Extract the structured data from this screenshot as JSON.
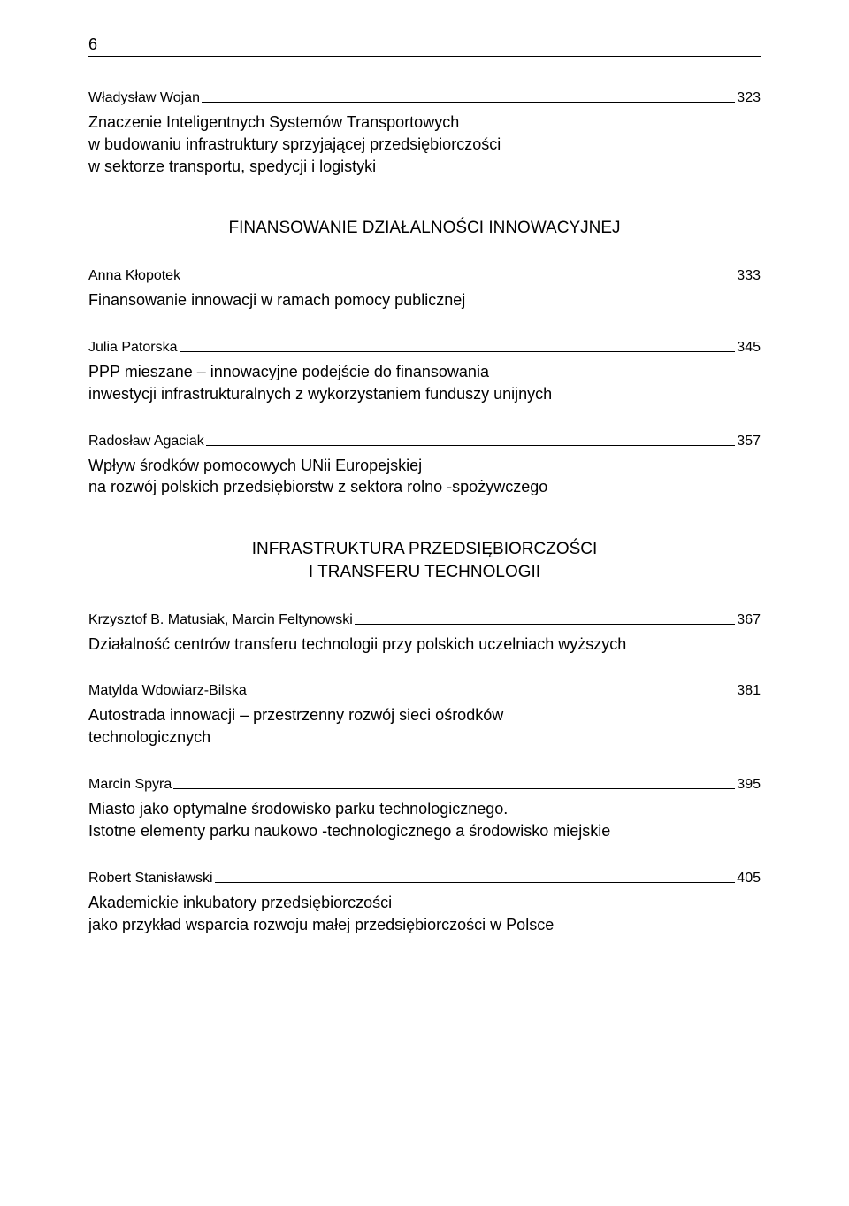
{
  "page_number": "6",
  "entries_top": [
    {
      "author": "Władysław Wojan",
      "page": "323",
      "desc": "Znaczenie Inteligentnych Systemów Transportowych\nw budowaniu infrastruktury sprzyjającej przedsiębiorczości\nw sektorze transportu, spedycji i logistyki"
    }
  ],
  "section1": {
    "title": "FINANSOWANIE DZIAŁALNOŚCI INNOWACYJNEJ",
    "entries": [
      {
        "author": "Anna Kłopotek",
        "page": "333",
        "desc": "Finansowanie innowacji w ramach pomocy publicznej"
      },
      {
        "author": "Julia Patorska",
        "page": "345",
        "desc": "PPP mieszane – innowacyjne podejście do finansowania\ninwestycji infrastrukturalnych z wykorzystaniem funduszy unijnych"
      },
      {
        "author": "Radosław Agaciak",
        "page": "357",
        "desc": "Wpływ środków pomocowych UNii Europejskiej\nna rozwój polskich przedsiębiorstw z sektora rolno -spożywczego"
      }
    ]
  },
  "section2": {
    "title": "INFRASTRUKTURA PRZEDSIĘBIORCZOŚCI\nI TRANSFERU TECHNOLOGII",
    "entries": [
      {
        "author": "Krzysztof B. Matusiak, Marcin Feltynowski",
        "page": "367",
        "desc": "Działalność centrów transferu technologii przy polskich uczelniach wyższych"
      },
      {
        "author": "Matylda Wdowiarz-Bilska",
        "page": "381",
        "desc": "Autostrada innowacji – przestrzenny rozwój sieci ośrodków\ntechnologicznych"
      },
      {
        "author": "Marcin Spyra",
        "page": "395",
        "desc": "Miasto jako optymalne środowisko parku technologicznego.\nIstotne elementy parku naukowo -technologicznego a środowisko miejskie"
      },
      {
        "author": "Robert Stanisławski",
        "page": "405",
        "desc": "Akademickie inkubatory przedsiębiorczości\njako przykład wsparcia rozwoju małej przedsiębiorczości w Polsce"
      }
    ]
  }
}
